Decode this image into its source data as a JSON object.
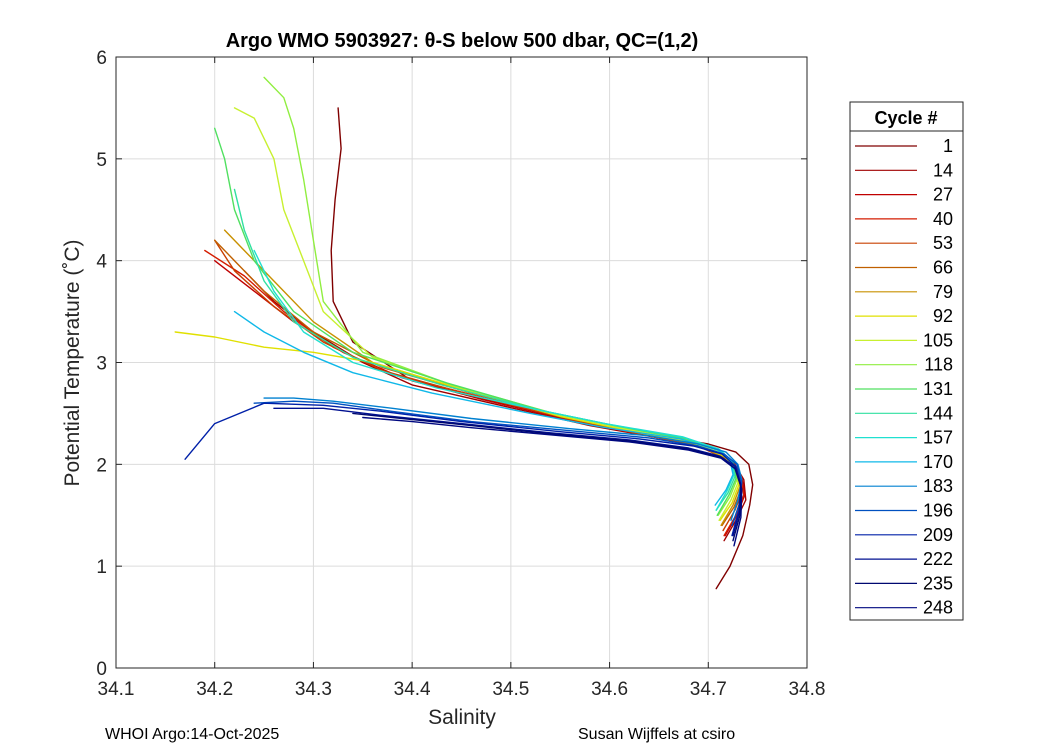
{
  "chart_data": {
    "type": "line",
    "title": "Argo WMO 5903927: θ-S below 500 dbar,  QC=(1,2)",
    "xlabel": "Salinity",
    "ylabel": "Potential Temperature (˚C)",
    "xlim": [
      34.1,
      34.8
    ],
    "ylim": [
      0,
      6
    ],
    "xticks": [
      "34.1",
      "34.2",
      "34.3",
      "34.4",
      "34.5",
      "34.6",
      "34.7",
      "34.8"
    ],
    "yticks": [
      "0",
      "1",
      "2",
      "3",
      "4",
      "5",
      "6"
    ],
    "grid": true,
    "legend": {
      "title": "Cycle #",
      "placement": "outside-right",
      "entries": [
        "1",
        "14",
        "27",
        "40",
        "53",
        "66",
        "79",
        "92",
        "105",
        "118",
        "131",
        "144",
        "157",
        "170",
        "183",
        "196",
        "209",
        "222",
        "235",
        "248"
      ],
      "colors": [
        "#800000",
        "#a00000",
        "#c00000",
        "#d41c00",
        "#c84000",
        "#c06000",
        "#c89000",
        "#e0e000",
        "#c8f030",
        "#90ee40",
        "#50e060",
        "#30e0a0",
        "#20e0d0",
        "#10b8e8",
        "#0080d0",
        "#0050c0",
        "#0020a8",
        "#001090",
        "#000870",
        "#000880"
      ]
    },
    "series": [
      {
        "name": "1",
        "x": [
          34.708,
          34.722,
          34.735,
          34.742,
          34.745,
          34.741,
          34.728,
          34.7,
          34.65,
          34.58,
          34.48,
          34.4,
          34.34,
          34.32,
          34.318,
          34.322,
          34.328,
          34.325
        ],
        "y": [
          0.78,
          1.0,
          1.3,
          1.6,
          1.8,
          2.0,
          2.12,
          2.2,
          2.28,
          2.4,
          2.62,
          2.82,
          3.2,
          3.6,
          4.1,
          4.6,
          5.1,
          5.5
        ]
      },
      {
        "name": "14",
        "x": [
          34.716,
          34.728,
          34.738,
          34.736,
          34.725,
          34.7,
          34.65,
          34.58,
          34.48,
          34.4,
          34.35,
          34.3,
          34.26,
          34.23
        ],
        "y": [
          1.25,
          1.45,
          1.65,
          1.85,
          2.03,
          2.15,
          2.26,
          2.38,
          2.6,
          2.78,
          3.0,
          3.3,
          3.6,
          3.9
        ]
      },
      {
        "name": "27",
        "x": [
          34.717,
          34.729,
          34.737,
          34.734,
          34.722,
          34.695,
          34.64,
          34.57,
          34.47,
          34.39,
          34.33,
          34.28,
          34.24,
          34.2
        ],
        "y": [
          1.3,
          1.5,
          1.7,
          1.88,
          2.04,
          2.16,
          2.28,
          2.41,
          2.64,
          2.85,
          3.1,
          3.4,
          3.7,
          4.0
        ]
      },
      {
        "name": "40",
        "x": [
          34.716,
          34.728,
          34.736,
          34.733,
          34.721,
          34.694,
          34.64,
          34.57,
          34.47,
          34.38,
          34.32,
          34.27,
          34.23,
          34.19
        ],
        "y": [
          1.3,
          1.5,
          1.7,
          1.88,
          2.04,
          2.16,
          2.29,
          2.42,
          2.66,
          2.88,
          3.15,
          3.5,
          3.85,
          4.1
        ]
      },
      {
        "name": "53",
        "x": [
          34.715,
          34.727,
          34.734,
          34.731,
          34.719,
          34.69,
          34.63,
          34.56,
          34.46,
          34.37,
          34.31,
          34.26,
          34.22,
          34.2
        ],
        "y": [
          1.35,
          1.55,
          1.72,
          1.9,
          2.05,
          2.18,
          2.3,
          2.44,
          2.68,
          2.92,
          3.2,
          3.55,
          3.9,
          4.2
        ]
      },
      {
        "name": "66",
        "x": [
          34.714,
          34.726,
          34.733,
          34.73,
          34.718,
          34.688,
          34.63,
          34.56,
          34.46,
          34.37,
          34.3,
          34.25,
          34.22,
          34.2
        ],
        "y": [
          1.4,
          1.58,
          1.75,
          1.92,
          2.06,
          2.19,
          2.31,
          2.45,
          2.7,
          2.95,
          3.3,
          3.7,
          4.0,
          4.2
        ]
      },
      {
        "name": "79",
        "x": [
          34.713,
          34.725,
          34.732,
          34.729,
          34.717,
          34.686,
          34.625,
          34.555,
          34.455,
          34.36,
          34.3,
          34.26,
          34.23,
          34.21
        ],
        "y": [
          1.4,
          1.6,
          1.78,
          1.94,
          2.07,
          2.2,
          2.32,
          2.46,
          2.72,
          3.0,
          3.4,
          3.8,
          4.1,
          4.3
        ]
      },
      {
        "name": "92",
        "x": [
          34.712,
          34.724,
          34.731,
          34.728,
          34.716,
          34.684,
          34.62,
          34.55,
          34.45,
          34.36,
          34.3,
          34.25,
          34.2,
          34.16
        ],
        "y": [
          1.45,
          1.62,
          1.8,
          1.96,
          2.08,
          2.21,
          2.33,
          2.47,
          2.74,
          3.0,
          3.1,
          3.15,
          3.25,
          3.3
        ]
      },
      {
        "name": "105",
        "x": [
          34.711,
          34.723,
          34.73,
          34.727,
          34.715,
          34.682,
          34.615,
          34.545,
          34.445,
          34.36,
          34.31,
          34.29,
          34.27,
          34.26,
          34.24,
          34.22
        ],
        "y": [
          1.45,
          1.65,
          1.82,
          1.98,
          2.1,
          2.22,
          2.35,
          2.49,
          2.76,
          3.05,
          3.5,
          4.0,
          4.5,
          5.0,
          5.4,
          5.5
        ]
      },
      {
        "name": "118",
        "x": [
          34.71,
          34.722,
          34.729,
          34.726,
          34.714,
          34.68,
          34.61,
          34.54,
          34.44,
          34.35,
          34.31,
          34.3,
          34.29,
          34.28,
          34.27,
          34.25
        ],
        "y": [
          1.5,
          1.68,
          1.85,
          2.0,
          2.12,
          2.24,
          2.37,
          2.51,
          2.78,
          3.1,
          3.6,
          4.2,
          4.8,
          5.3,
          5.6,
          5.8
        ]
      },
      {
        "name": "131",
        "x": [
          34.709,
          34.721,
          34.728,
          34.725,
          34.713,
          34.678,
          34.605,
          34.535,
          34.435,
          34.34,
          34.28,
          34.24,
          34.22,
          34.21,
          34.2
        ],
        "y": [
          1.5,
          1.7,
          1.86,
          2.02,
          2.13,
          2.25,
          2.38,
          2.52,
          2.8,
          3.1,
          3.5,
          4.0,
          4.5,
          5.0,
          5.3
        ]
      },
      {
        "name": "144",
        "x": [
          34.708,
          34.72,
          34.727,
          34.724,
          34.712,
          34.676,
          34.6,
          34.53,
          34.43,
          34.34,
          34.28,
          34.25,
          34.23,
          34.22
        ],
        "y": [
          1.55,
          1.72,
          1.88,
          2.03,
          2.14,
          2.26,
          2.39,
          2.53,
          2.78,
          3.05,
          3.4,
          3.8,
          4.3,
          4.7
        ]
      },
      {
        "name": "157",
        "x": [
          34.708,
          34.719,
          34.726,
          34.723,
          34.711,
          34.674,
          34.595,
          34.525,
          34.425,
          34.34,
          34.29,
          34.26,
          34.24
        ],
        "y": [
          1.55,
          1.74,
          1.9,
          2.04,
          2.15,
          2.27,
          2.4,
          2.54,
          2.75,
          3.0,
          3.3,
          3.7,
          4.1
        ]
      },
      {
        "name": "170",
        "x": [
          34.707,
          34.718,
          34.725,
          34.722,
          34.71,
          34.672,
          34.59,
          34.52,
          34.42,
          34.34,
          34.29,
          34.25,
          34.22
        ],
        "y": [
          1.6,
          1.75,
          1.9,
          2.04,
          2.14,
          2.25,
          2.37,
          2.5,
          2.7,
          2.9,
          3.1,
          3.3,
          3.5
        ]
      },
      {
        "name": "183",
        "x": [
          34.723,
          34.73,
          34.734,
          34.73,
          34.718,
          34.69,
          34.64,
          34.56,
          34.46,
          34.38,
          34.32,
          34.28,
          34.25
        ],
        "y": [
          1.45,
          1.65,
          1.85,
          2.0,
          2.12,
          2.2,
          2.28,
          2.35,
          2.45,
          2.55,
          2.62,
          2.65,
          2.65
        ]
      },
      {
        "name": "196",
        "x": [
          34.724,
          34.731,
          34.734,
          34.729,
          34.716,
          34.69,
          34.64,
          34.56,
          34.46,
          34.38,
          34.32,
          34.28,
          34.24
        ],
        "y": [
          1.4,
          1.6,
          1.82,
          2.0,
          2.1,
          2.18,
          2.26,
          2.33,
          2.42,
          2.52,
          2.6,
          2.62,
          2.6
        ]
      },
      {
        "name": "209",
        "x": [
          34.724,
          34.731,
          34.733,
          34.728,
          34.714,
          34.685,
          34.63,
          34.55,
          34.45,
          34.37,
          34.31,
          34.25,
          34.2,
          34.17
        ],
        "y": [
          1.3,
          1.55,
          1.8,
          1.98,
          2.1,
          2.18,
          2.25,
          2.32,
          2.42,
          2.52,
          2.58,
          2.6,
          2.4,
          2.05
        ]
      },
      {
        "name": "222",
        "x": [
          34.725,
          34.732,
          34.733,
          34.727,
          34.712,
          34.68,
          34.62,
          34.54,
          34.45,
          34.37,
          34.31,
          34.26
        ],
        "y": [
          1.3,
          1.55,
          1.8,
          1.98,
          2.08,
          2.16,
          2.24,
          2.31,
          2.4,
          2.48,
          2.55,
          2.55
        ]
      },
      {
        "name": "235",
        "x": [
          34.725,
          34.732,
          34.733,
          34.727,
          34.712,
          34.68,
          34.62,
          34.54,
          34.46,
          34.39,
          34.34
        ],
        "y": [
          1.25,
          1.5,
          1.78,
          1.96,
          2.07,
          2.15,
          2.23,
          2.3,
          2.38,
          2.45,
          2.5
        ]
      },
      {
        "name": "248",
        "x": [
          34.726,
          34.733,
          34.734,
          34.728,
          34.713,
          34.68,
          34.62,
          34.54,
          34.46,
          34.4,
          34.35
        ],
        "y": [
          1.2,
          1.48,
          1.76,
          1.95,
          2.06,
          2.14,
          2.22,
          2.29,
          2.36,
          2.42,
          2.46
        ]
      }
    ]
  },
  "footer": {
    "left": "WHOI Argo:14-Oct-2025",
    "right": "Susan Wijffels at csiro"
  }
}
